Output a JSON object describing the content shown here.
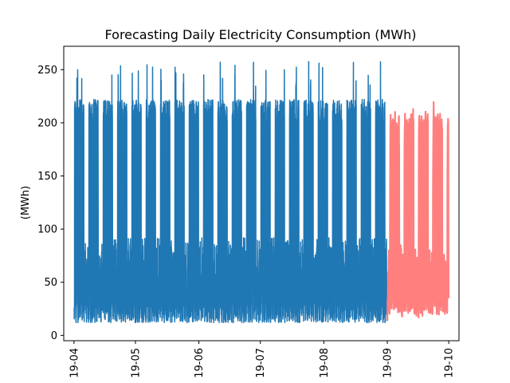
{
  "chart_data": {
    "type": "line",
    "title": "Forecasting Daily Electricity Consumption (MWh)",
    "xlabel": "",
    "ylabel": "(MWh)",
    "x_ticks": [
      "19-04",
      "19-05",
      "19-06",
      "19-07",
      "19-08",
      "19-09",
      "19-10"
    ],
    "x_tick_days": [
      0,
      30,
      61,
      91,
      122,
      153,
      183
    ],
    "xlim_days": [
      -5,
      188
    ],
    "y_ticks": [
      0,
      50,
      100,
      150,
      200,
      250
    ],
    "ylim": [
      -5,
      272
    ],
    "grid": false,
    "series": [
      {
        "name": "",
        "color": "#1f77b4",
        "x_start": "19-04",
        "x_end": "19-09",
        "base_low": 12,
        "base_high": 212,
        "peak_max": 258
      },
      {
        "name": "",
        "color": "#ff7f7f",
        "x_start": "19-09",
        "x_end": "19-10",
        "base_low": 14,
        "base_high": 205,
        "peak_max": 236
      }
    ]
  }
}
